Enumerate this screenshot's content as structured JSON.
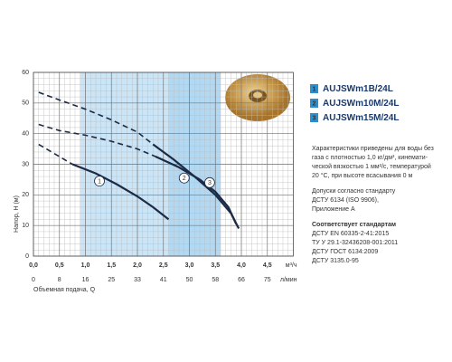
{
  "chart_data": {
    "type": "line",
    "y_label": "Напор, Н (м)",
    "x_label": "Объемная подача, Q",
    "x_unit": "м³/ч",
    "x2_unit": "л/мин",
    "xlim": [
      0,
      5
    ],
    "ylim": [
      0,
      60
    ],
    "xticks": [
      {
        "value": 0,
        "label": "0,0"
      },
      {
        "value": 0.5,
        "label": "0,5"
      },
      {
        "value": 1,
        "label": "1,0"
      },
      {
        "value": 1.5,
        "label": "1,5"
      },
      {
        "value": 2,
        "label": "2,0"
      },
      {
        "value": 2.5,
        "label": "2,5"
      },
      {
        "value": 3,
        "label": "3,0"
      },
      {
        "value": 3.5,
        "label": "3,5"
      },
      {
        "value": 4,
        "label": "4,0"
      },
      {
        "value": 4.5,
        "label": "4,5"
      }
    ],
    "x2ticks": [
      0,
      8,
      16,
      25,
      33,
      41,
      50,
      58,
      66,
      75
    ],
    "yticks": [
      0,
      10,
      20,
      30,
      40,
      50,
      60
    ],
    "grid": true,
    "series": [
      {
        "name": "AUJSWm1B/24L",
        "tag": "1",
        "color": "#1c2a46",
        "x": [
          0.1,
          0.4,
          0.75,
          1.2,
          1.6,
          2.0,
          2.3,
          2.6
        ],
        "values": [
          36.5,
          33.5,
          30,
          27,
          23.5,
          19.5,
          16,
          12
        ],
        "solid_from": 2,
        "range": [
          0.9,
          2.6
        ],
        "tag_at": [
          1.27,
          24.5
        ]
      },
      {
        "name": "AUJSWm10M/24L",
        "tag": "2",
        "color": "#1c2a46",
        "x": [
          0.1,
          0.5,
          1.0,
          1.5,
          2.0,
          2.35,
          2.8,
          3.2,
          3.5,
          3.75,
          3.9
        ],
        "values": [
          43,
          41,
          39.5,
          37.5,
          35,
          32.5,
          29,
          25,
          21,
          16,
          10.5
        ],
        "solid_from": 5,
        "range": [
          2.6,
          3.6
        ],
        "tag_at": [
          2.9,
          25.5
        ]
      },
      {
        "name": "AUJSWm15M/24L",
        "tag": "3",
        "color": "#1c2a46",
        "x": [
          0.1,
          0.5,
          1.0,
          1.5,
          2.0,
          2.3,
          2.7,
          3.1,
          3.5,
          3.8,
          3.95
        ],
        "values": [
          53.5,
          51,
          48,
          44.5,
          40.5,
          36.5,
          31.5,
          26,
          20,
          14,
          9
        ],
        "solid_from": 5,
        "range": [
          2.6,
          3.6
        ],
        "tag_at": [
          3.39,
          24
        ]
      }
    ]
  },
  "notes": {
    "conditions": [
      "Характеристики приведены для воды без",
      "газа с плотностью 1,0 кг/дм³, кинемати-",
      "ческой вязкостью 1 мм²/с, температурой",
      "20 °С, при высоте всасывания 0 м"
    ],
    "tolerances": [
      "Допуски согласно стандарту",
      "ДСТУ 6134 (ISO 9906),",
      "Приложение А"
    ],
    "standards_title": "Соответствует стандартам",
    "standards": [
      "ДСТУ EN 60335-2-41:2015",
      "ТУ У 29.1-32436208-001:2011",
      "ДСТУ ГОСТ 6134:2009",
      "ДСТУ 3135.0-95"
    ]
  }
}
